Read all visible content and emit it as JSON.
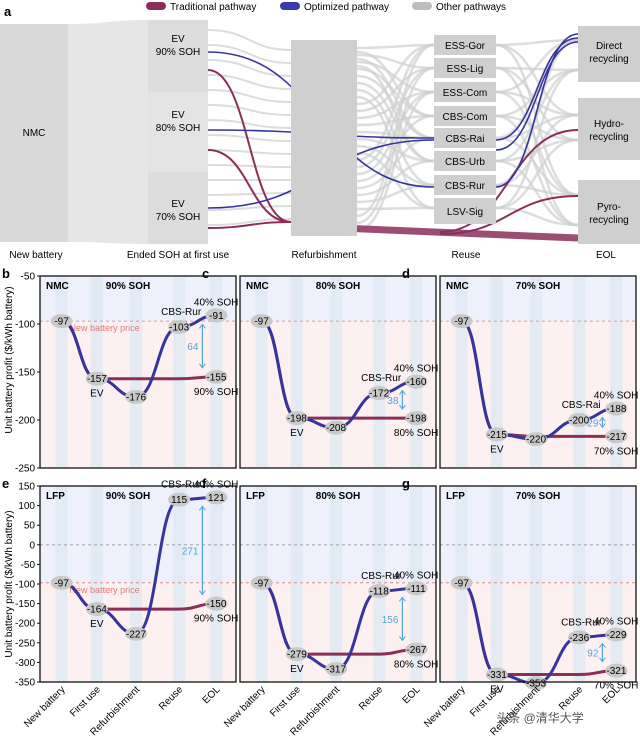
{
  "panel_a": {
    "label": "a",
    "legend": [
      {
        "label": "Traditional pathway",
        "color": "#8b2e5a"
      },
      {
        "label": "Optimized pathway",
        "color": "#3a3aa8"
      },
      {
        "label": "Other pathways",
        "color": "#bdbdbd"
      }
    ],
    "source_node": "NMC",
    "soh_nodes": [
      {
        "line1": "EV",
        "line2": "90% SOH"
      },
      {
        "line1": "EV",
        "line2": "80% SOH"
      },
      {
        "line1": "EV",
        "line2": "70% SOH"
      }
    ],
    "reuse_nodes": [
      "ESS-Gor",
      "ESS-Lig",
      "ESS-Com",
      "CBS-Com",
      "CBS-Rai",
      "CBS-Urb",
      "CBS-Rur",
      "LSV-Sig"
    ],
    "eol_nodes": [
      {
        "line1": "Direct",
        "line2": "recycling"
      },
      {
        "line1": "Hydro-",
        "line2": "recycling"
      },
      {
        "line1": "Pyro-",
        "line2": "recycling"
      }
    ],
    "stage_labels": [
      "New battery",
      "Ended SOH at first use",
      "Refurbishment",
      "Reuse",
      "EOL"
    ]
  },
  "chart_data": [
    {
      "label": "b",
      "type": "line",
      "chem": "NMC",
      "soh": "90% SOH",
      "ylim": [
        -250,
        -50
      ],
      "traditional": [
        -97,
        -157,
        -157,
        -157,
        -155
      ],
      "optimized": [
        -97,
        -157,
        -176,
        -103,
        -91
      ],
      "labels": [
        "-97",
        "-157",
        "-176",
        "-103",
        "-91",
        "-155"
      ],
      "route": "CBS-Rur",
      "top_soh": "40% SOH",
      "bottom_soh": "90% SOH",
      "gap": "64",
      "ref": "New battery price"
    },
    {
      "label": "c",
      "type": "line",
      "chem": "NMC",
      "soh": "80% SOH",
      "ylim": [
        -250,
        -50
      ],
      "traditional": [
        -97,
        -198,
        -198,
        -198,
        -198
      ],
      "optimized": [
        -97,
        -198,
        -208,
        -172,
        -160
      ],
      "labels": [
        "-97",
        "-198",
        "-208",
        "-172",
        "-160",
        "-198"
      ],
      "route": "CBS-Rur",
      "top_soh": "40% SOH",
      "bottom_soh": "80% SOH",
      "gap": "38"
    },
    {
      "label": "d",
      "type": "line",
      "chem": "NMC",
      "soh": "70% SOH",
      "ylim": [
        -250,
        -50
      ],
      "traditional": [
        -97,
        -215,
        -217,
        -217,
        -217
      ],
      "optimized": [
        -97,
        -215,
        -220,
        -200,
        -188
      ],
      "labels": [
        "-97",
        "-215",
        "-220",
        "-200",
        "-188",
        "-217"
      ],
      "route": "CBS-Rai",
      "top_soh": "40% SOH",
      "bottom_soh": "70% SOH",
      "gap": "29"
    },
    {
      "label": "e",
      "type": "line",
      "chem": "LFP",
      "soh": "90% SOH",
      "ylim": [
        -350,
        150
      ],
      "traditional": [
        -97,
        -164,
        -164,
        -164,
        -150
      ],
      "optimized": [
        -97,
        -164,
        -227,
        115,
        121
      ],
      "labels": [
        "-97",
        "-164",
        "-227",
        "115",
        "121",
        "-150"
      ],
      "route": "CBS-Rur",
      "top_soh": "40% SOH",
      "bottom_soh": "90% SOH",
      "gap": "271",
      "ref": "New battery price"
    },
    {
      "label": "f",
      "type": "line",
      "chem": "LFP",
      "soh": "80% SOH",
      "ylim": [
        -350,
        150
      ],
      "traditional": [
        -97,
        -279,
        -279,
        -279,
        -267
      ],
      "optimized": [
        -97,
        -279,
        -317,
        -118,
        -111
      ],
      "labels": [
        "-97",
        "-279",
        "-317",
        "-118",
        "-111",
        "-267"
      ],
      "route": "CBS-Rur",
      "top_soh": "40% SOH",
      "bottom_soh": "80% SOH",
      "gap": "156"
    },
    {
      "label": "g",
      "type": "line",
      "chem": "LFP",
      "soh": "70% SOH",
      "ylim": [
        -350,
        150
      ],
      "traditional": [
        -97,
        -331,
        -331,
        -331,
        -321
      ],
      "optimized": [
        -97,
        -331,
        -353,
        -236,
        -229
      ],
      "labels": [
        "-97",
        "-331",
        "-353",
        "-236",
        "-229",
        "-321"
      ],
      "route": "CBS-Rur",
      "top_soh": "40% SOH",
      "bottom_soh": "70% SOH",
      "gap": "92"
    }
  ],
  "axes": {
    "ylabel": "Unit battery profit ($/kWh battery)",
    "xcats": [
      "New battery",
      "First use",
      "Refurbishment",
      "Reuse",
      "EOL"
    ],
    "nmc_ticks": [
      "-50",
      "-100",
      "-150",
      "-200",
      "-250"
    ],
    "lfp_ticks": [
      "150",
      "100",
      "50",
      "0",
      "-50",
      "-100",
      "-150",
      "-200",
      "-250",
      "-300",
      "-350"
    ]
  },
  "colors": {
    "traditional": "#8b2e5a",
    "optimized": "#35359c",
    "gap": "#4fa6d8",
    "ref": "#e07a7a"
  },
  "watermark": "头条 @清华大学"
}
